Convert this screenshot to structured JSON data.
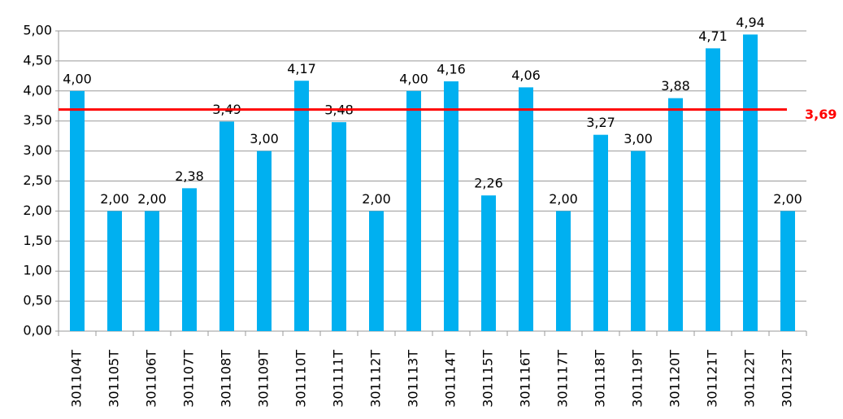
{
  "chart_data": {
    "type": "bar",
    "categories": [
      "301104T",
      "301105T",
      "301106T",
      "301107T",
      "301108T",
      "301109T",
      "301110T",
      "301111T",
      "301112T",
      "301113T",
      "301114T",
      "301115T",
      "301116T",
      "301117T",
      "301118T",
      "301119T",
      "301120T",
      "301121T",
      "301122T",
      "301123T"
    ],
    "values": [
      4.0,
      2.0,
      2.0,
      2.38,
      3.49,
      3.0,
      4.17,
      3.48,
      2.0,
      4.0,
      4.16,
      2.26,
      4.06,
      2.0,
      3.27,
      3.0,
      3.88,
      4.71,
      4.94,
      2.0
    ],
    "value_labels": [
      "4,00",
      "2,00",
      "2,00",
      "2,38",
      "3,49",
      "3,00",
      "4,17",
      "3,48",
      "2,00",
      "4,00",
      "4,16",
      "2,26",
      "4,06",
      "2,00",
      "3,27",
      "3,00",
      "3,88",
      "4,71",
      "4,94",
      "2,00"
    ],
    "color": "#00b0f0",
    "ylim": [
      0,
      5
    ],
    "yticks": [
      {
        "value": 0,
        "label": "0,00"
      },
      {
        "value": 0.5,
        "label": "0,50"
      },
      {
        "value": 1,
        "label": "1,00"
      },
      {
        "value": 1.5,
        "label": "1,50"
      },
      {
        "value": 2,
        "label": "2,00"
      },
      {
        "value": 2.5,
        "label": "2,50"
      },
      {
        "value": 3,
        "label": "3,00"
      },
      {
        "value": 3.5,
        "label": "3,50"
      },
      {
        "value": 4,
        "label": "4,00"
      },
      {
        "value": 4.5,
        "label": "4,50"
      },
      {
        "value": 5,
        "label": "5,00"
      }
    ],
    "grid": true,
    "reference_line": {
      "value": 3.69,
      "label": "3,69",
      "color": "#ff0000"
    }
  }
}
